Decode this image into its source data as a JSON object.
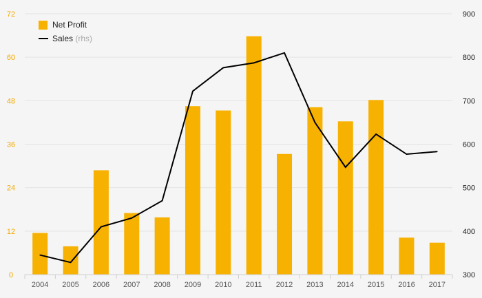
{
  "chart_data": {
    "type": "bar",
    "categories": [
      "2004",
      "2005",
      "2006",
      "2007",
      "2008",
      "2009",
      "2010",
      "2011",
      "2012",
      "2013",
      "2014",
      "2015",
      "2016",
      "2017"
    ],
    "series": [
      {
        "name": "Net Profit",
        "type": "bar",
        "axis": "left",
        "color": "#f7b100",
        "values": [
          11.5,
          7.8,
          28.8,
          17.0,
          15.8,
          46.5,
          45.3,
          65.8,
          33.3,
          46.2,
          42.3,
          48.2,
          10.2,
          8.8
        ]
      },
      {
        "name": "Sales",
        "type": "line",
        "axis": "right",
        "color": "#000000",
        "values": [
          345,
          328,
          410,
          430,
          470,
          722,
          776,
          787,
          810,
          650,
          547,
          623,
          577,
          583
        ]
      }
    ],
    "y_left": {
      "min": 0,
      "max": 72,
      "ticks": [
        "0",
        "12",
        "24",
        "36",
        "48",
        "60",
        "72"
      ]
    },
    "y_right": {
      "min": 300,
      "max": 900,
      "ticks": [
        "300",
        "400",
        "500",
        "600",
        "700",
        "800",
        "900"
      ]
    },
    "legend": {
      "position": "top-left",
      "items": [
        {
          "label": "Net Profit",
          "note": ""
        },
        {
          "label": "Sales",
          "note": "(rhs)"
        }
      ]
    },
    "grid": true,
    "title": "",
    "xlabel": "",
    "ylabel": ""
  }
}
